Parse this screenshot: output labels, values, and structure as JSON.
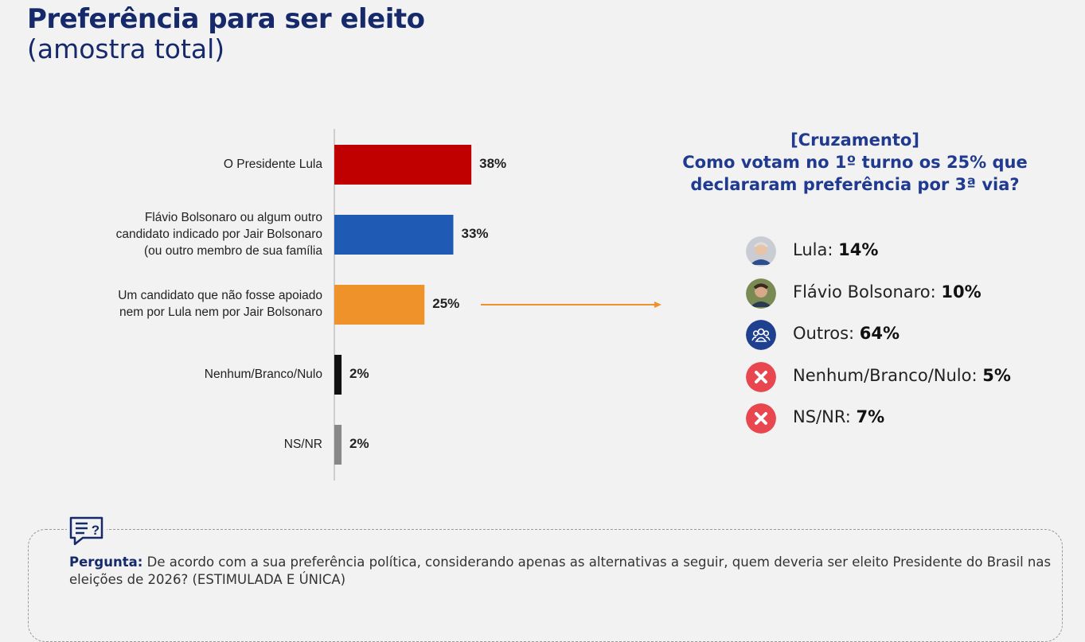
{
  "header": {
    "title": "Preferência para ser eleito",
    "subtitle": "(amostra total)"
  },
  "chart_data": {
    "type": "bar",
    "orientation": "horizontal",
    "categories": [
      [
        "O Presidente Lula"
      ],
      [
        "Flávio Bolsonaro ou algum outro",
        "candidato indicado por Jair Bolsonaro",
        "(ou outro membro de sua família"
      ],
      [
        "Um candidato que não fosse apoiado",
        "nem por Lula nem por Jair Bolsonaro"
      ],
      [
        "Nenhum/Branco/Nulo"
      ],
      [
        "NS/NR"
      ]
    ],
    "values": [
      38,
      33,
      25,
      2,
      2
    ],
    "value_labels": [
      "38%",
      "33%",
      "25%",
      "2%",
      "2%"
    ],
    "colors": [
      "#c00000",
      "#1f5bb5",
      "#f0922a",
      "#111111",
      "#888888"
    ]
  },
  "cross_tab": {
    "title": "[Cruzamento]",
    "subtitle": [
      "Como votam no 1º turno os 25% que",
      "declararam preferência por 3ª via?"
    ],
    "items": [
      {
        "label": "Lula:",
        "value": "14%"
      },
      {
        "label": "Flávio Bolsonaro:",
        "value": "10%"
      },
      {
        "label": "Outros:",
        "value": "64%"
      },
      {
        "label": "Nenhum/Branco/Nulo:",
        "value": "5%"
      },
      {
        "label": "NS/NR:",
        "value": "7%"
      }
    ]
  },
  "question": {
    "label": "Pergunta:",
    "text": "De acordo com a sua preferência política, considerando apenas as alternativas a seguir, quem deveria ser eleito Presidente do Brasil nas eleições de 2026? (ESTIMULADA E ÚNICA)"
  }
}
